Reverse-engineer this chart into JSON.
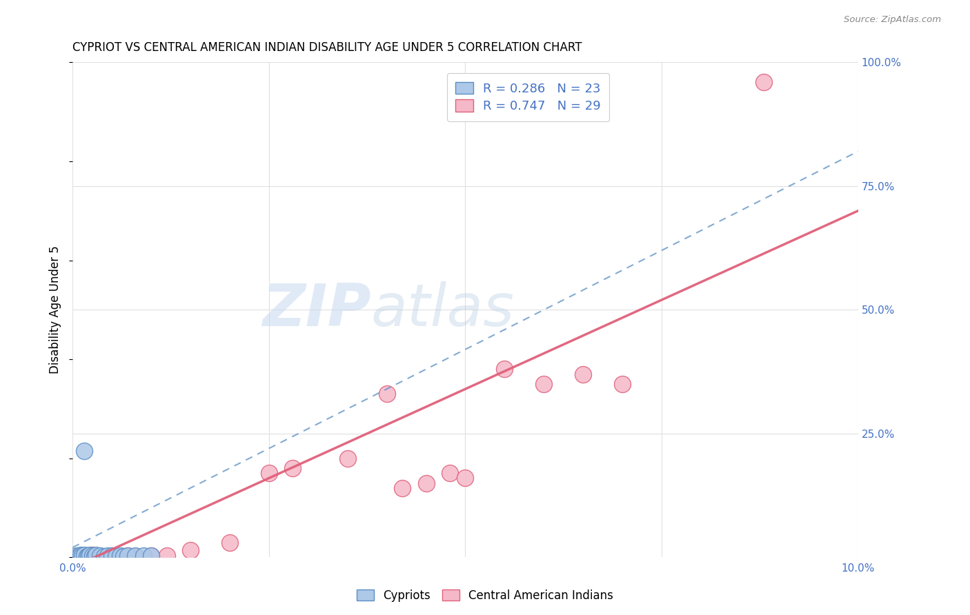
{
  "title": "CYPRIOT VS CENTRAL AMERICAN INDIAN DISABILITY AGE UNDER 5 CORRELATION CHART",
  "source": "Source: ZipAtlas.com",
  "ylabel": "Disability Age Under 5",
  "xlim": [
    0.0,
    10.0
  ],
  "ylim": [
    0.0,
    100.0
  ],
  "xticks": [
    0.0,
    2.5,
    5.0,
    7.5,
    10.0
  ],
  "yticks": [
    0.0,
    25.0,
    50.0,
    75.0,
    100.0
  ],
  "ytick_labels": [
    "",
    "25.0%",
    "50.0%",
    "75.0%",
    "100.0%"
  ],
  "cypriot_R": 0.286,
  "cypriot_N": 23,
  "cam_R": 0.747,
  "cam_N": 29,
  "cypriot_color": "#adc8e8",
  "cypriot_edge_color": "#5b8ec4",
  "cypriot_line_color": "#5b8ec4",
  "cam_color": "#f5b8c8",
  "cam_edge_color": "#e0607a",
  "cam_line_color": "#e0607a",
  "legend_text_color": "#4472c4",
  "watermark_zip": "ZIP",
  "watermark_atlas": "atlas",
  "background_color": "#ffffff",
  "grid_color": "#e0e0e0",
  "cypriot_x": [
    0.05,
    0.08,
    0.1,
    0.12,
    0.15,
    0.18,
    0.2,
    0.22,
    0.25,
    0.28,
    0.3,
    0.35,
    0.4,
    0.45,
    0.5,
    0.55,
    0.6,
    0.65,
    0.7,
    0.8,
    0.9,
    1.0,
    0.15
  ],
  "cypriot_y": [
    0.3,
    0.2,
    0.5,
    0.3,
    0.4,
    0.2,
    0.3,
    0.4,
    0.3,
    0.2,
    0.4,
    0.3,
    0.2,
    0.3,
    0.3,
    0.2,
    0.3,
    0.2,
    0.3,
    0.3,
    0.3,
    0.3,
    21.5
  ],
  "cam_x": [
    0.05,
    0.08,
    0.1,
    0.12,
    0.15,
    0.18,
    0.2,
    0.25,
    0.3,
    0.5,
    0.7,
    0.8,
    1.0,
    1.2,
    1.5,
    2.0,
    2.5,
    2.8,
    3.5,
    4.0,
    4.2,
    4.5,
    4.8,
    5.0,
    5.5,
    6.0,
    6.5,
    7.0,
    8.8
  ],
  "cam_y": [
    0.2,
    0.3,
    0.2,
    0.3,
    0.2,
    0.3,
    0.2,
    0.4,
    0.3,
    0.3,
    0.3,
    0.2,
    0.3,
    0.3,
    1.5,
    3.0,
    17.0,
    18.0,
    20.0,
    33.0,
    14.0,
    15.0,
    17.0,
    16.0,
    38.0,
    35.0,
    37.0,
    35.0,
    96.0
  ],
  "cam_line_x0": 0.0,
  "cam_line_y0": -2.0,
  "cam_line_x1": 10.0,
  "cam_line_y1": 70.0,
  "cyp_line_x0": 0.0,
  "cyp_line_y0": 2.0,
  "cyp_line_x1": 10.0,
  "cyp_line_y1": 82.0
}
